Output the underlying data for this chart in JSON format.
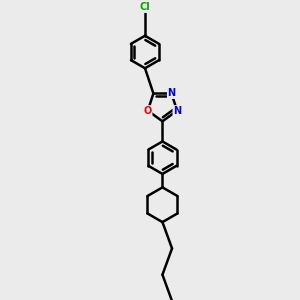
{
  "bg_color": "#ebebeb",
  "line_color": "#000000",
  "bond_width": 1.8,
  "atom_colors": {
    "N": "#0000ee",
    "O": "#ee0000",
    "Cl": "#00aa00",
    "C": "#000000"
  },
  "figsize": [
    3.0,
    3.0
  ],
  "dpi": 100
}
